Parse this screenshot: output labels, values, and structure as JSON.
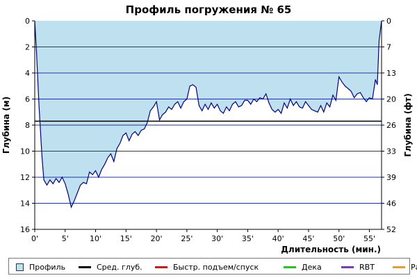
{
  "chart_data": {
    "type": "area",
    "title": "Профиль погружения № 65",
    "xlabel": "Длительность (мин.)",
    "ylabel_left": "Глубина (м)",
    "ylabel_right": "Глубина (фт)",
    "x_ticks": [
      "0'",
      "5'",
      "10'",
      "15'",
      "20'",
      "25'",
      "30'",
      "35'",
      "40'",
      "45'",
      "50'",
      "55'"
    ],
    "x_tick_values": [
      0,
      5,
      10,
      15,
      20,
      25,
      30,
      35,
      40,
      45,
      50,
      55
    ],
    "xlim": [
      0,
      57
    ],
    "y_left_ticks": [
      "0",
      "2",
      "4",
      "6",
      "8",
      "10",
      "12",
      "14",
      "16"
    ],
    "y_left_values": [
      0,
      2,
      4,
      6,
      8,
      10,
      12,
      14,
      16
    ],
    "y_right_ticks": [
      "0",
      "7",
      "13",
      "20",
      "26",
      "33",
      "39",
      "46",
      "52"
    ],
    "ylim": [
      0,
      16
    ],
    "y_inverted": true,
    "grid": true,
    "average_depth": 7.7,
    "series": [
      {
        "name": "Профиль",
        "color": "#bfe0ee",
        "line_color": "#000080",
        "x": [
          0,
          0.3,
          0.7,
          1.2,
          1.5,
          2.0,
          2.5,
          3.0,
          3.5,
          4.0,
          4.5,
          5.0,
          5.5,
          6.0,
          6.5,
          7.0,
          7.5,
          8.0,
          8.5,
          9.0,
          9.5,
          10.0,
          10.5,
          11.0,
          11.5,
          12.0,
          12.5,
          13.0,
          13.5,
          14.0,
          14.5,
          15.0,
          15.5,
          16.0,
          16.5,
          17.0,
          17.5,
          18.0,
          18.5,
          19.0,
          19.5,
          20.0,
          20.5,
          21.0,
          21.5,
          22.0,
          22.5,
          23.0,
          23.5,
          24.0,
          24.5,
          25.0,
          25.5,
          26.0,
          26.5,
          27.0,
          27.5,
          28.0,
          28.5,
          29.0,
          29.5,
          30.0,
          30.5,
          31.0,
          31.5,
          32.0,
          32.5,
          33.0,
          33.5,
          34.0,
          34.5,
          35.0,
          35.5,
          36.0,
          36.5,
          37.0,
          37.5,
          38.0,
          38.5,
          39.0,
          39.5,
          40.0,
          40.5,
          41.0,
          41.5,
          42.0,
          42.5,
          43.0,
          43.5,
          44.0,
          44.5,
          45.0,
          45.5,
          46.0,
          46.5,
          47.0,
          47.5,
          48.0,
          48.5,
          49.0,
          49.5,
          50.0,
          50.5,
          51.0,
          51.5,
          52.0,
          52.5,
          53.0,
          53.5,
          54.0,
          54.5,
          55.0,
          55.5,
          56.0,
          56.3,
          56.6,
          57.0
        ],
        "y": [
          0,
          2.5,
          6.5,
          10.5,
          12.2,
          12.6,
          12.2,
          12.5,
          12.1,
          12.4,
          12.0,
          12.5,
          13.3,
          14.3,
          13.8,
          13.2,
          12.6,
          12.4,
          12.5,
          11.6,
          11.8,
          11.5,
          12.0,
          11.4,
          11.0,
          10.5,
          10.2,
          10.8,
          9.8,
          9.4,
          8.8,
          8.6,
          9.2,
          8.7,
          8.5,
          8.8,
          8.4,
          8.3,
          7.8,
          6.9,
          6.6,
          6.2,
          7.6,
          7.2,
          7.0,
          6.6,
          6.8,
          6.4,
          6.2,
          6.7,
          6.2,
          6.0,
          5.0,
          4.9,
          5.1,
          6.5,
          6.9,
          6.4,
          6.8,
          6.3,
          6.7,
          6.4,
          6.9,
          7.1,
          6.6,
          6.9,
          6.4,
          6.2,
          6.6,
          6.5,
          6.1,
          6.1,
          6.4,
          6.0,
          6.2,
          5.9,
          6.0,
          5.6,
          6.3,
          6.8,
          7.0,
          6.8,
          7.1,
          6.3,
          6.7,
          6.0,
          6.5,
          6.2,
          6.6,
          6.7,
          6.2,
          6.5,
          6.8,
          6.9,
          7.0,
          6.5,
          7.0,
          6.3,
          6.6,
          5.7,
          6.1,
          4.3,
          4.7,
          5.0,
          5.2,
          5.4,
          5.9,
          5.6,
          5.5,
          5.9,
          6.2,
          5.9,
          6.0,
          4.5,
          4.9,
          1.5,
          0
        ]
      }
    ],
    "legend": [
      {
        "label": "Профиль",
        "kind": "box",
        "color": "#bfe0ee",
        "border": "#333333"
      },
      {
        "label": "Сред. глуб.",
        "kind": "line",
        "color": "#000000"
      },
      {
        "label": "Быстр. подъем/спуск",
        "kind": "line",
        "color": "#ff0000"
      },
      {
        "label": "Дека",
        "kind": "line",
        "color": "#00dd00"
      },
      {
        "label": "RBT",
        "kind": "line",
        "color": "#8a2be2"
      },
      {
        "label": "Раб.",
        "kind": "line",
        "color": "#ff9900"
      }
    ],
    "legend_position": "bottom"
  }
}
